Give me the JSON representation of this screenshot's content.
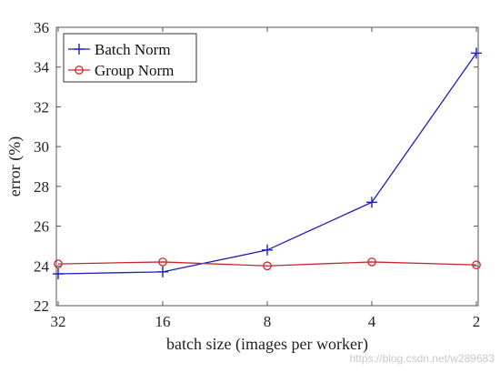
{
  "chart_data": {
    "type": "line",
    "x": [
      "32",
      "16",
      "8",
      "4",
      "2"
    ],
    "xlabel": "batch size (images per worker)",
    "ylabel": "error (%)",
    "ylim": [
      22,
      36
    ],
    "yticks": [
      22,
      24,
      26,
      28,
      30,
      32,
      34,
      36
    ],
    "grid": false,
    "legend_position": "top-left",
    "series": [
      {
        "name": "Batch Norm",
        "values": [
          23.6,
          23.7,
          24.8,
          27.2,
          34.7
        ],
        "color": "#1f1fb4",
        "marker": "plus"
      },
      {
        "name": "Group Norm",
        "values": [
          24.1,
          24.2,
          24.0,
          24.2,
          24.05
        ],
        "color": "#c8282d",
        "marker": "circle"
      }
    ]
  },
  "watermark": "https://blog.csdn.net/w289683"
}
